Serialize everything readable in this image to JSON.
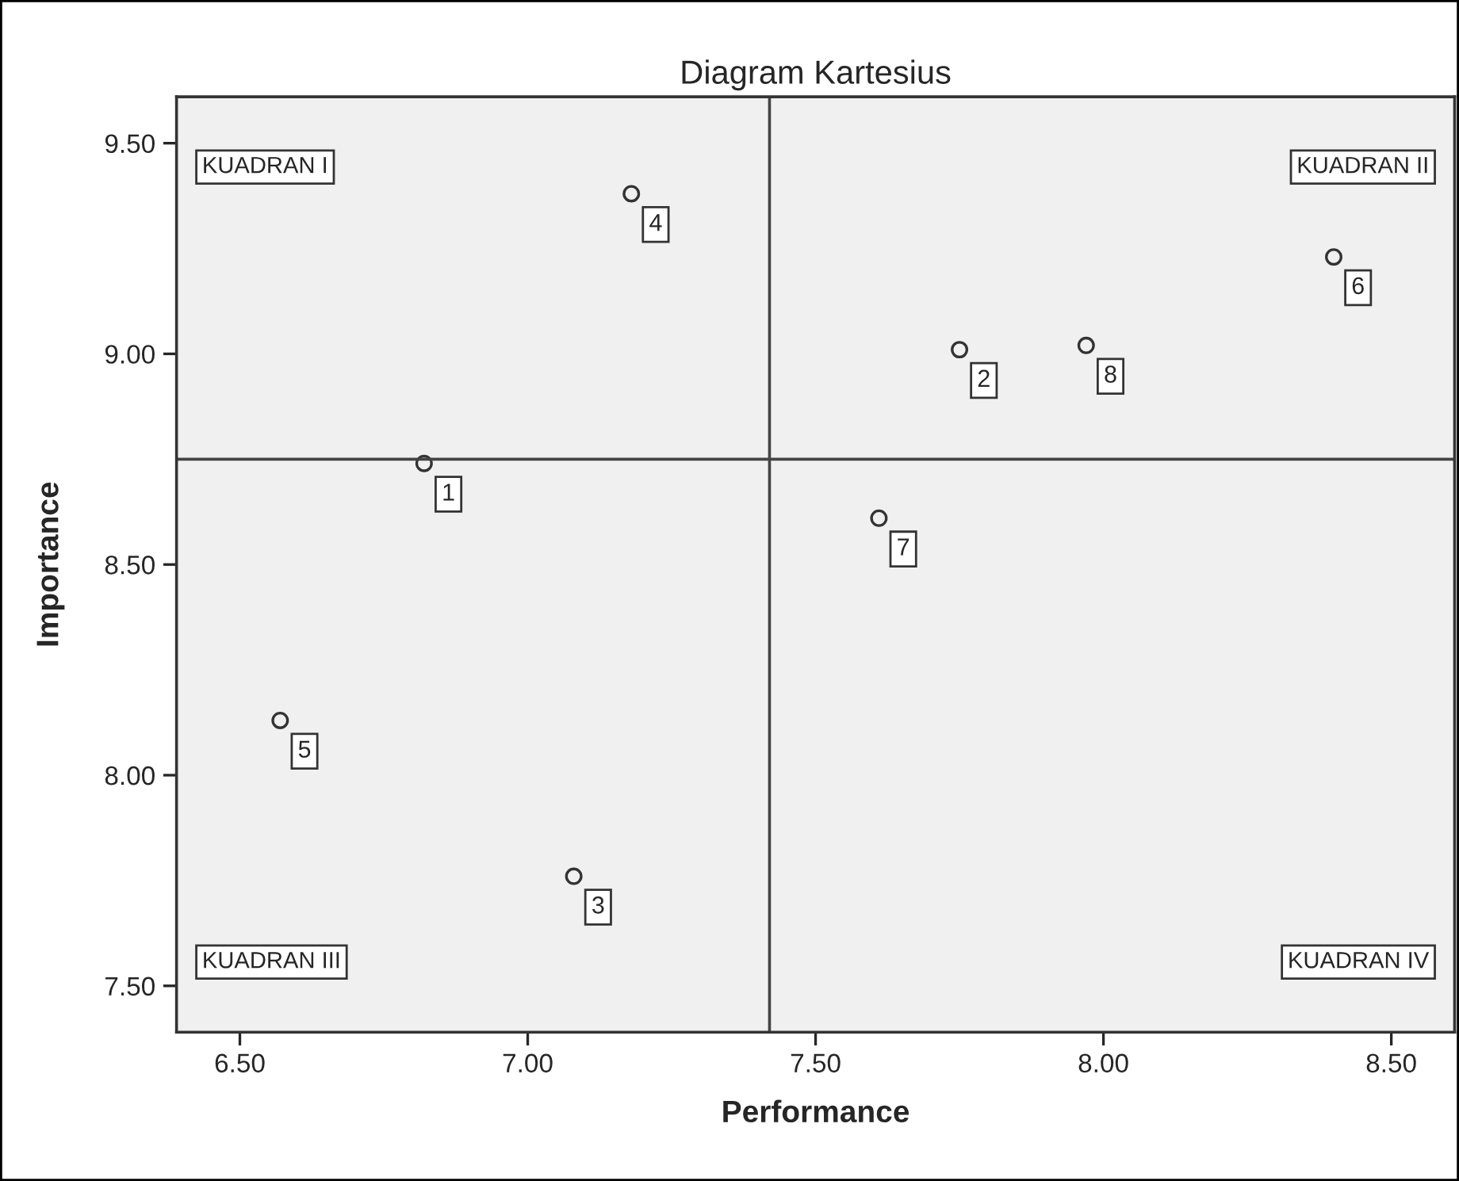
{
  "chart_data": {
    "type": "scatter",
    "title": "Diagram Kartesius",
    "xlabel": "Performance",
    "ylabel": "Importance",
    "x": [
      6.82,
      7.75,
      7.08,
      7.18,
      6.57,
      8.4,
      7.61,
      7.97
    ],
    "series": [
      {
        "color": "#333333",
        "values": [
          8.74,
          9.01,
          7.76,
          9.38,
          8.13,
          9.23,
          8.61,
          9.02
        ]
      }
    ],
    "marker": "circle",
    "grid": false,
    "xlim": [
      6.39,
      8.61
    ],
    "xticks": [
      {
        "value": 6.5,
        "label": "6.50"
      },
      {
        "value": 7.0,
        "label": "7.00"
      },
      {
        "value": 7.5,
        "label": "7.50"
      },
      {
        "value": 8.0,
        "label": "8.00"
      },
      {
        "value": 8.5,
        "label": "8.50"
      }
    ],
    "ylim": [
      7.39,
      9.61
    ],
    "yticks": [
      {
        "value": 7.5,
        "label": "7.50"
      },
      {
        "value": 8.0,
        "label": "8.00"
      },
      {
        "value": 8.5,
        "label": "8.50"
      },
      {
        "value": 9.0,
        "label": "9.00"
      },
      {
        "value": 9.5,
        "label": "9.50"
      }
    ],
    "ref_lines": [
      {
        "axis": "x",
        "value": 7.42,
        "color": "#444444"
      },
      {
        "axis": "y",
        "value": 8.75,
        "color": "#444444"
      }
    ],
    "annotations": [
      {
        "text": "1",
        "x": 6.82,
        "y": 8.74
      },
      {
        "text": "2",
        "x": 7.75,
        "y": 9.01
      },
      {
        "text": "3",
        "x": 7.08,
        "y": 7.76
      },
      {
        "text": "4",
        "x": 7.18,
        "y": 9.38
      },
      {
        "text": "5",
        "x": 6.57,
        "y": 8.13
      },
      {
        "text": "6",
        "x": 8.4,
        "y": 9.23
      },
      {
        "text": "7",
        "x": 7.61,
        "y": 8.61
      },
      {
        "text": "8",
        "x": 7.97,
        "y": 9.02
      },
      "KUADRAN I",
      "KUADRAN II",
      "KUADRAN III",
      "KUADRAN IV"
    ]
  }
}
